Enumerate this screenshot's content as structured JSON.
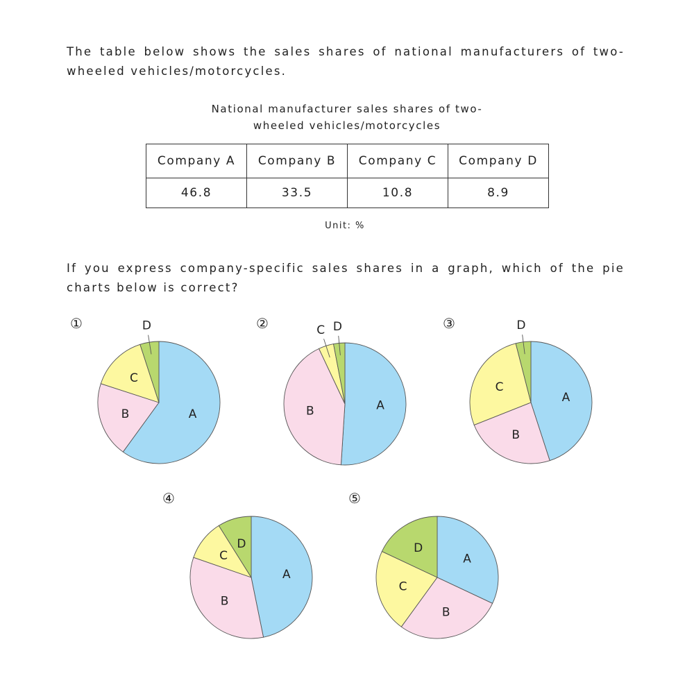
{
  "intro": "The table below shows the sales shares of national manufacturers of two-wheeled vehicles/motorcycles.",
  "table": {
    "caption_line1": "National manufacturer sales shares of two-",
    "caption_line2": "wheeled vehicles/motorcycles",
    "headers": [
      "Company A",
      "Company B",
      "Company C",
      "Company D"
    ],
    "values": [
      "46.8",
      "33.5",
      "10.8",
      "8.9"
    ],
    "unit": "Unit: %"
  },
  "question": "If you express company-specific sales shares in a graph, which of the pie charts below is correct?",
  "colors": {
    "A": "#a4daf5",
    "B": "#fadbe9",
    "C": "#fdf8a0",
    "D": "#b8d86e"
  },
  "chart_data": [
    {
      "type": "pie",
      "option": "①",
      "categories": [
        "A",
        "B",
        "C",
        "D"
      ],
      "values": [
        60,
        20,
        15,
        5
      ]
    },
    {
      "type": "pie",
      "option": "②",
      "categories": [
        "A",
        "B",
        "C",
        "D"
      ],
      "values": [
        51,
        42,
        4,
        3
      ]
    },
    {
      "type": "pie",
      "option": "③",
      "categories": [
        "A",
        "B",
        "C",
        "D"
      ],
      "values": [
        45,
        24,
        27,
        4
      ]
    },
    {
      "type": "pie",
      "option": "④",
      "categories": [
        "A",
        "B",
        "C",
        "D"
      ],
      "values": [
        46.8,
        33.5,
        10.8,
        8.9
      ]
    },
    {
      "type": "pie",
      "option": "⑤",
      "categories": [
        "A",
        "B",
        "C",
        "D"
      ],
      "values": [
        32,
        28,
        22,
        18
      ]
    }
  ]
}
